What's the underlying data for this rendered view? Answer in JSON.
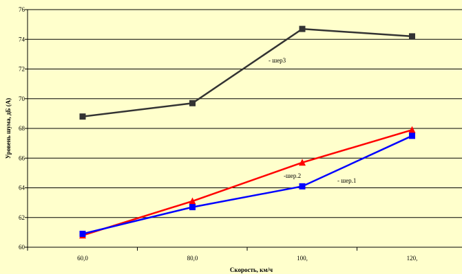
{
  "chart_data": {
    "type": "line",
    "title": "",
    "xlabel": "Скорость, км/ч",
    "ylabel": "Уровень шума, дБ (А)",
    "categories": [
      "60,0",
      "80,0",
      "100,",
      "120,"
    ],
    "ylim": [
      60,
      76
    ],
    "yticks": [
      "60",
      "62",
      "64",
      "66",
      "68",
      "70",
      "72",
      "74",
      "76"
    ],
    "grid": true,
    "legend": "none",
    "series": [
      {
        "name": "- шер3",
        "color": "#333333",
        "marker": "square",
        "values": [
          68.8,
          69.7,
          74.7,
          74.2
        ]
      },
      {
        "name": "-шер.2",
        "color": "#ff0000",
        "marker": "triangle",
        "values": [
          60.8,
          63.1,
          65.7,
          67.9
        ]
      },
      {
        "name": "- шер.1",
        "color": "#0000ff",
        "marker": "square",
        "values": [
          60.9,
          62.7,
          64.1,
          67.5
        ]
      }
    ]
  },
  "colors": {
    "background": "#ffffcc",
    "grid": "#000000"
  }
}
